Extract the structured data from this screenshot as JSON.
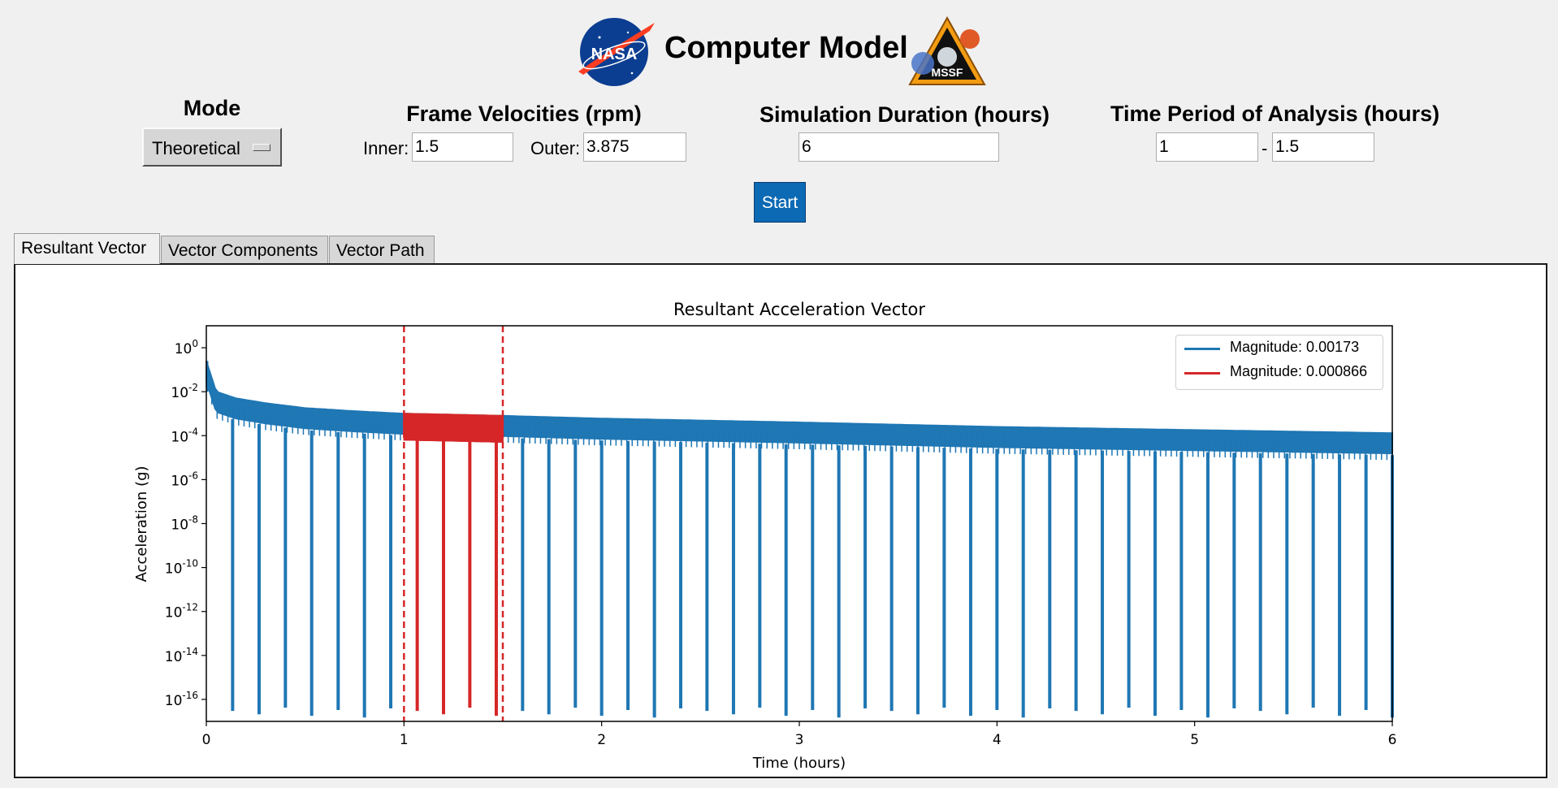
{
  "header": {
    "title": "Computer Model"
  },
  "logos": {
    "nasa_text": "NASA",
    "mssf_text": "MSSF"
  },
  "mode": {
    "title": "Mode",
    "selected": "Theoretical"
  },
  "frame_velocities": {
    "title": "Frame Velocities (rpm)",
    "inner_label": "Inner:",
    "inner_value": "1.5",
    "outer_label": "Outer:",
    "outer_value": "3.875"
  },
  "simulation": {
    "title": "Simulation Duration (hours)",
    "value": "6"
  },
  "analysis": {
    "title": "Time Period of Analysis (hours)",
    "start": "1",
    "separator": "-",
    "end": "1.5"
  },
  "start_button": {
    "label": "Start"
  },
  "tabs": [
    {
      "label": "Resultant Vector",
      "active": true
    },
    {
      "label": "Vector Components",
      "active": false
    },
    {
      "label": "Vector Path",
      "active": false
    }
  ],
  "colors": {
    "blue": "#1f77b4",
    "red": "#d62728",
    "start_button": "#0c69b3"
  },
  "chart_data": {
    "type": "line",
    "title": "Resultant Acceleration Vector",
    "xlabel": "Time (hours)",
    "ylabel": "Acceleration (g)",
    "xlim": [
      0,
      6
    ],
    "ylim": [
      1e-17,
      10
    ],
    "yscale": "log",
    "xticks": [
      "0",
      "1",
      "2",
      "3",
      "4",
      "5",
      "6"
    ],
    "yticks": [
      {
        "base": "10",
        "exp": "0"
      },
      {
        "base": "10",
        "exp": "-2"
      },
      {
        "base": "10",
        "exp": "-4"
      },
      {
        "base": "10",
        "exp": "-6"
      },
      {
        "base": "10",
        "exp": "-8"
      },
      {
        "base": "10",
        "exp": "-10"
      },
      {
        "base": "10",
        "exp": "-12"
      },
      {
        "base": "10",
        "exp": "-14"
      },
      {
        "base": "10",
        "exp": "-16"
      }
    ],
    "legend_position": "top-right",
    "series": [
      {
        "name": "Magnitude: 0.00173",
        "color": "#1f77b4",
        "x": [
          0,
          0.05,
          0.15,
          0.3,
          0.5,
          0.75,
          1.0,
          1.5,
          2.0,
          3.0,
          4.0,
          5.0,
          6.0
        ],
        "y": [
          0.25,
          0.01,
          0.005,
          0.003,
          0.0018,
          0.0013,
          0.001,
          0.0008,
          0.0006,
          0.0004,
          0.00025,
          0.00018,
          0.00013
        ],
        "dip_times": [
          0.133,
          0.267,
          0.4,
          0.533,
          0.667,
          0.8,
          0.933,
          1.6,
          1.733,
          1.867,
          2.0,
          2.133,
          2.267,
          2.4,
          2.533,
          2.667,
          2.8,
          2.933,
          3.067,
          3.2,
          3.333,
          3.467,
          3.6,
          3.733,
          3.867,
          4.0,
          4.133,
          4.267,
          4.4,
          4.533,
          4.667,
          4.8,
          4.933,
          5.067,
          5.2,
          5.333,
          5.467,
          5.6,
          5.733,
          5.867,
          6.0
        ],
        "dip_value": 3e-17
      },
      {
        "name": "Magnitude: 0.000866",
        "color": "#d62728",
        "x": [
          1.0,
          1.25,
          1.5
        ],
        "y": [
          0.001,
          0.0009,
          0.0008
        ],
        "dip_times": [
          1.067,
          1.2,
          1.333,
          1.467
        ],
        "dip_value": 3e-17
      }
    ],
    "vlines": [
      1.0,
      1.5
    ]
  }
}
